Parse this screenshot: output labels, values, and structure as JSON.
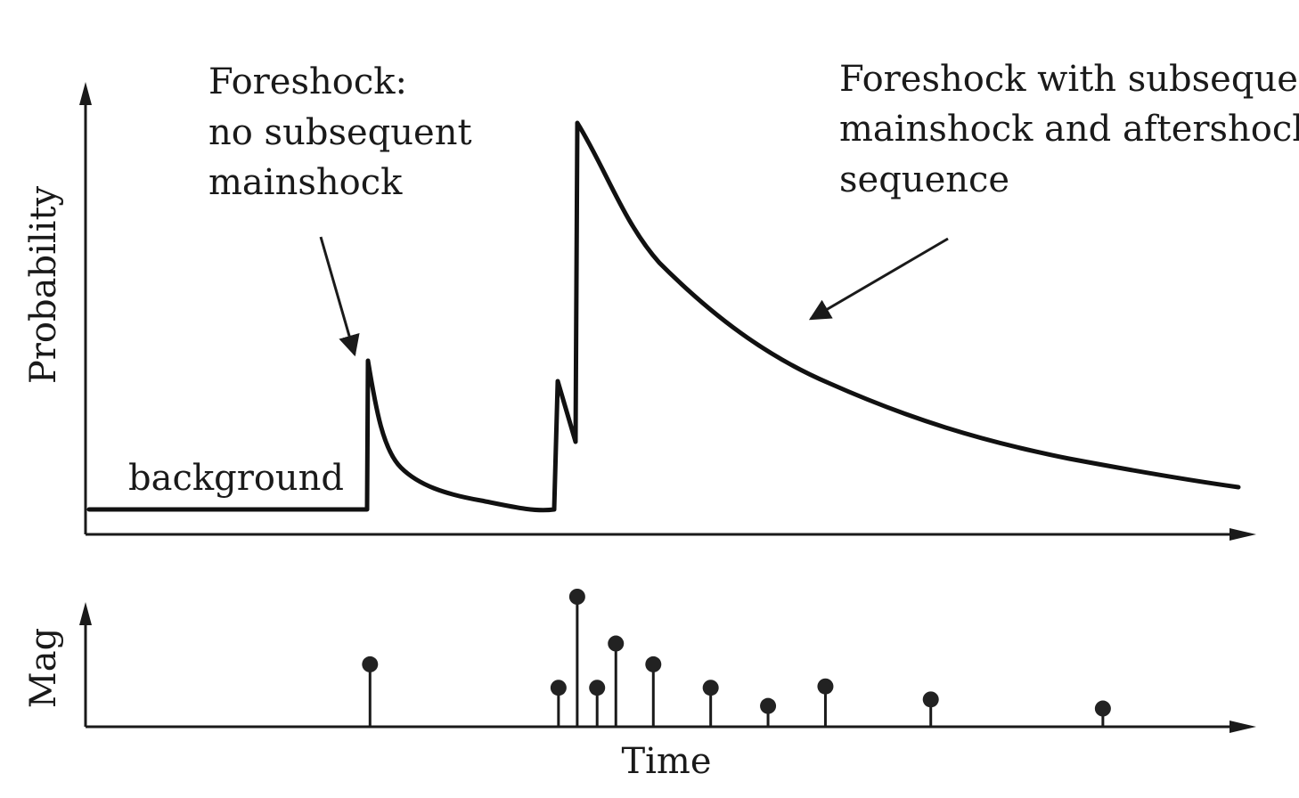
{
  "labels": {
    "foreshock_only": [
      "Foreshock:",
      "no subsequent",
      "mainshock"
    ],
    "foreshock_sequence": [
      "Foreshock with subsequent",
      "mainshock and aftershock",
      "sequence"
    ],
    "background": "background",
    "y_axis_top": "Probability",
    "y_axis_bottom": "Mag",
    "x_axis": "Time"
  },
  "events": [
    {
      "time": 0.243,
      "mag": 0.48
    },
    {
      "time": 0.404,
      "mag": 0.3
    },
    {
      "time": 0.42,
      "mag": 1.0
    },
    {
      "time": 0.437,
      "mag": 0.3
    },
    {
      "time": 0.453,
      "mag": 0.64
    },
    {
      "time": 0.485,
      "mag": 0.48
    },
    {
      "time": 0.534,
      "mag": 0.3
    },
    {
      "time": 0.583,
      "mag": 0.16
    },
    {
      "time": 0.632,
      "mag": 0.31
    },
    {
      "time": 0.722,
      "mag": 0.21
    },
    {
      "time": 0.869,
      "mag": 0.14
    }
  ]
}
